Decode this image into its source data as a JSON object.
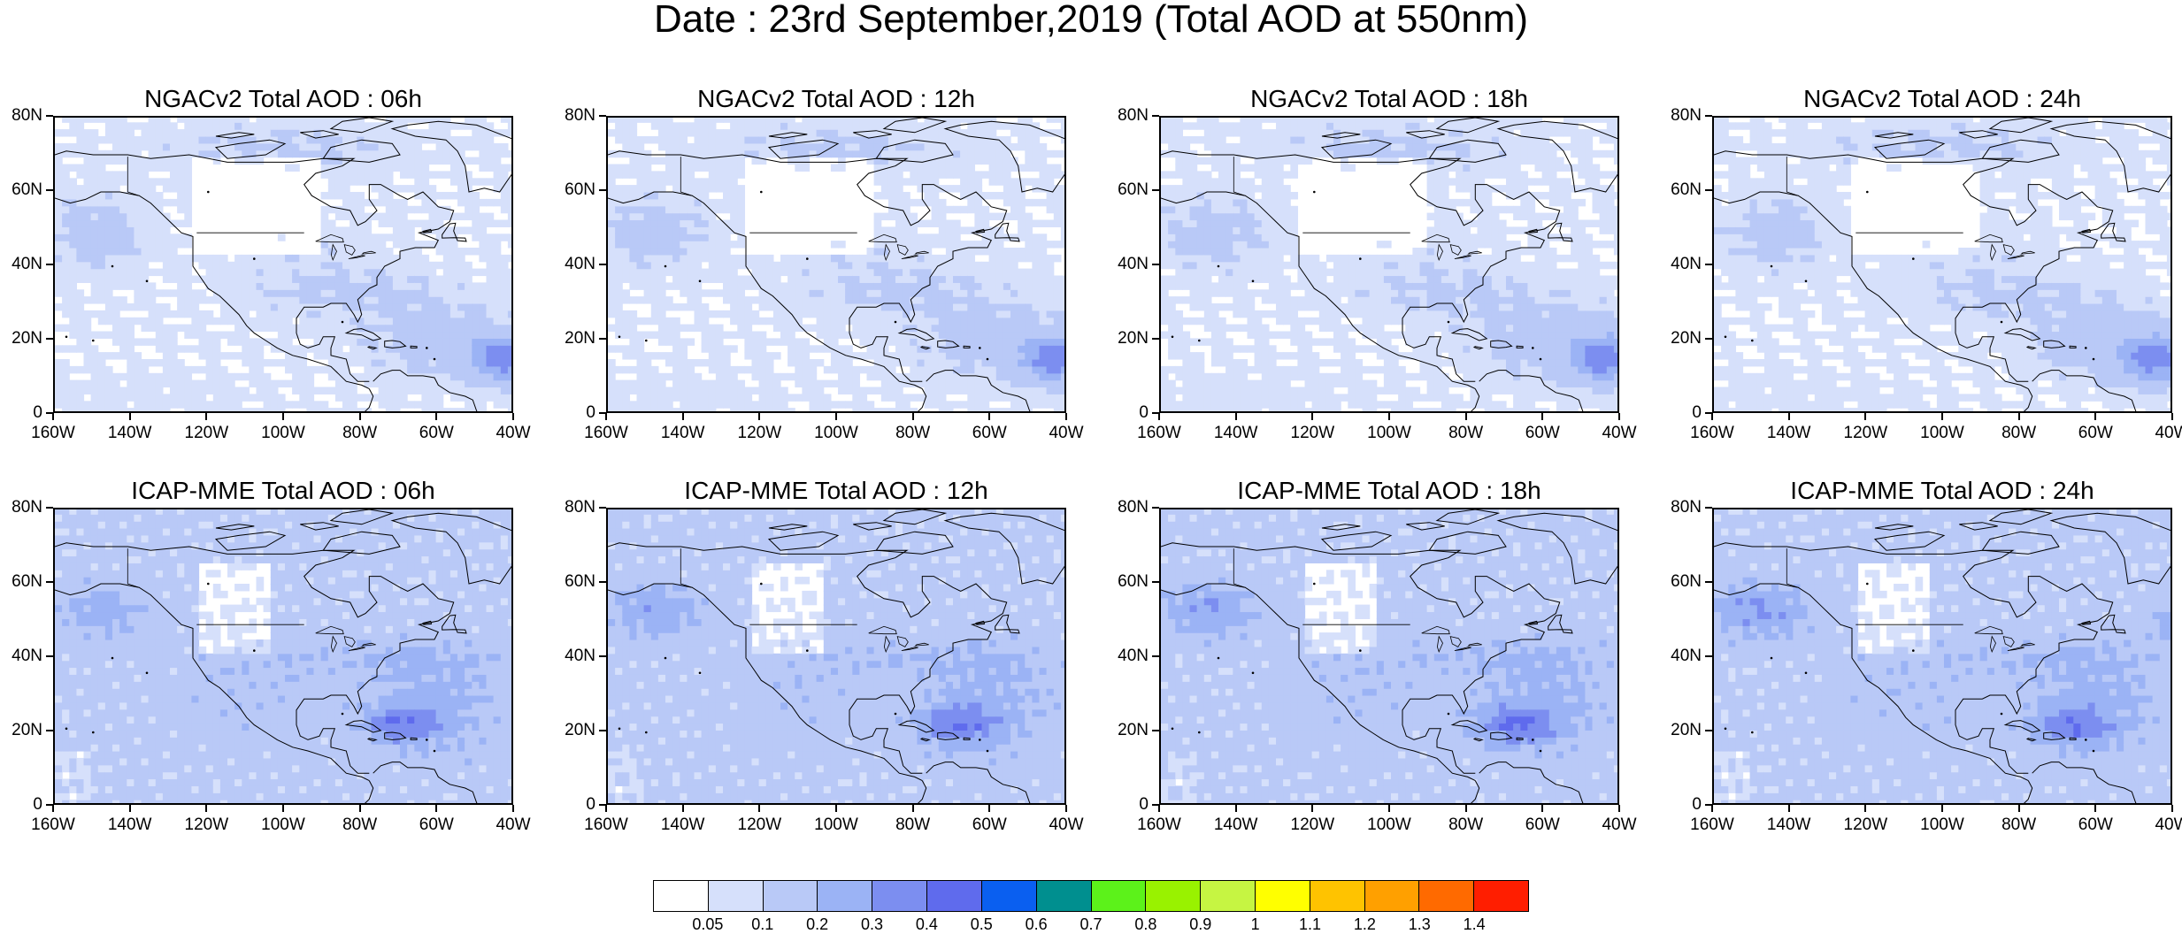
{
  "title": "Date : 23rd September,2019 (Total AOD at 550nm)",
  "rows": [
    {
      "model": "NGACv2",
      "panels": [
        {
          "title": "NGACv2 Total AOD : 06h"
        },
        {
          "title": "NGACv2 Total AOD : 12h"
        },
        {
          "title": "NGACv2 Total AOD : 18h"
        },
        {
          "title": "NGACv2 Total AOD : 24h"
        }
      ]
    },
    {
      "model": "ICAP-MME",
      "panels": [
        {
          "title": "ICAP-MME Total AOD : 06h"
        },
        {
          "title": "ICAP-MME Total AOD : 12h"
        },
        {
          "title": "ICAP-MME Total AOD : 18h"
        },
        {
          "title": "ICAP-MME Total AOD : 24h"
        }
      ]
    }
  ],
  "lat_labels": [
    "80N",
    "60N",
    "40N",
    "20N",
    "0"
  ],
  "lon_labels": [
    "160W",
    "140W",
    "120W",
    "100W",
    "80W",
    "60W",
    "40W"
  ],
  "colorbar": {
    "colors": [
      "#ffffff",
      "#d6e0fb",
      "#b9c9f7",
      "#9bb3f5",
      "#7c8ef0",
      "#5f6bed",
      "#0a5ff0",
      "#008f8f",
      "#5cf21a",
      "#99f200",
      "#c6f542",
      "#ffff00",
      "#ffc300",
      "#ffa000",
      "#ff6a00",
      "#ff1e00"
    ],
    "labels": [
      "0.05",
      "0.1",
      "0.2",
      "0.3",
      "0.4",
      "0.5",
      "0.6",
      "0.7",
      "0.8",
      "0.9",
      "1",
      "1.1",
      "1.2",
      "1.3",
      "1.4"
    ]
  }
}
